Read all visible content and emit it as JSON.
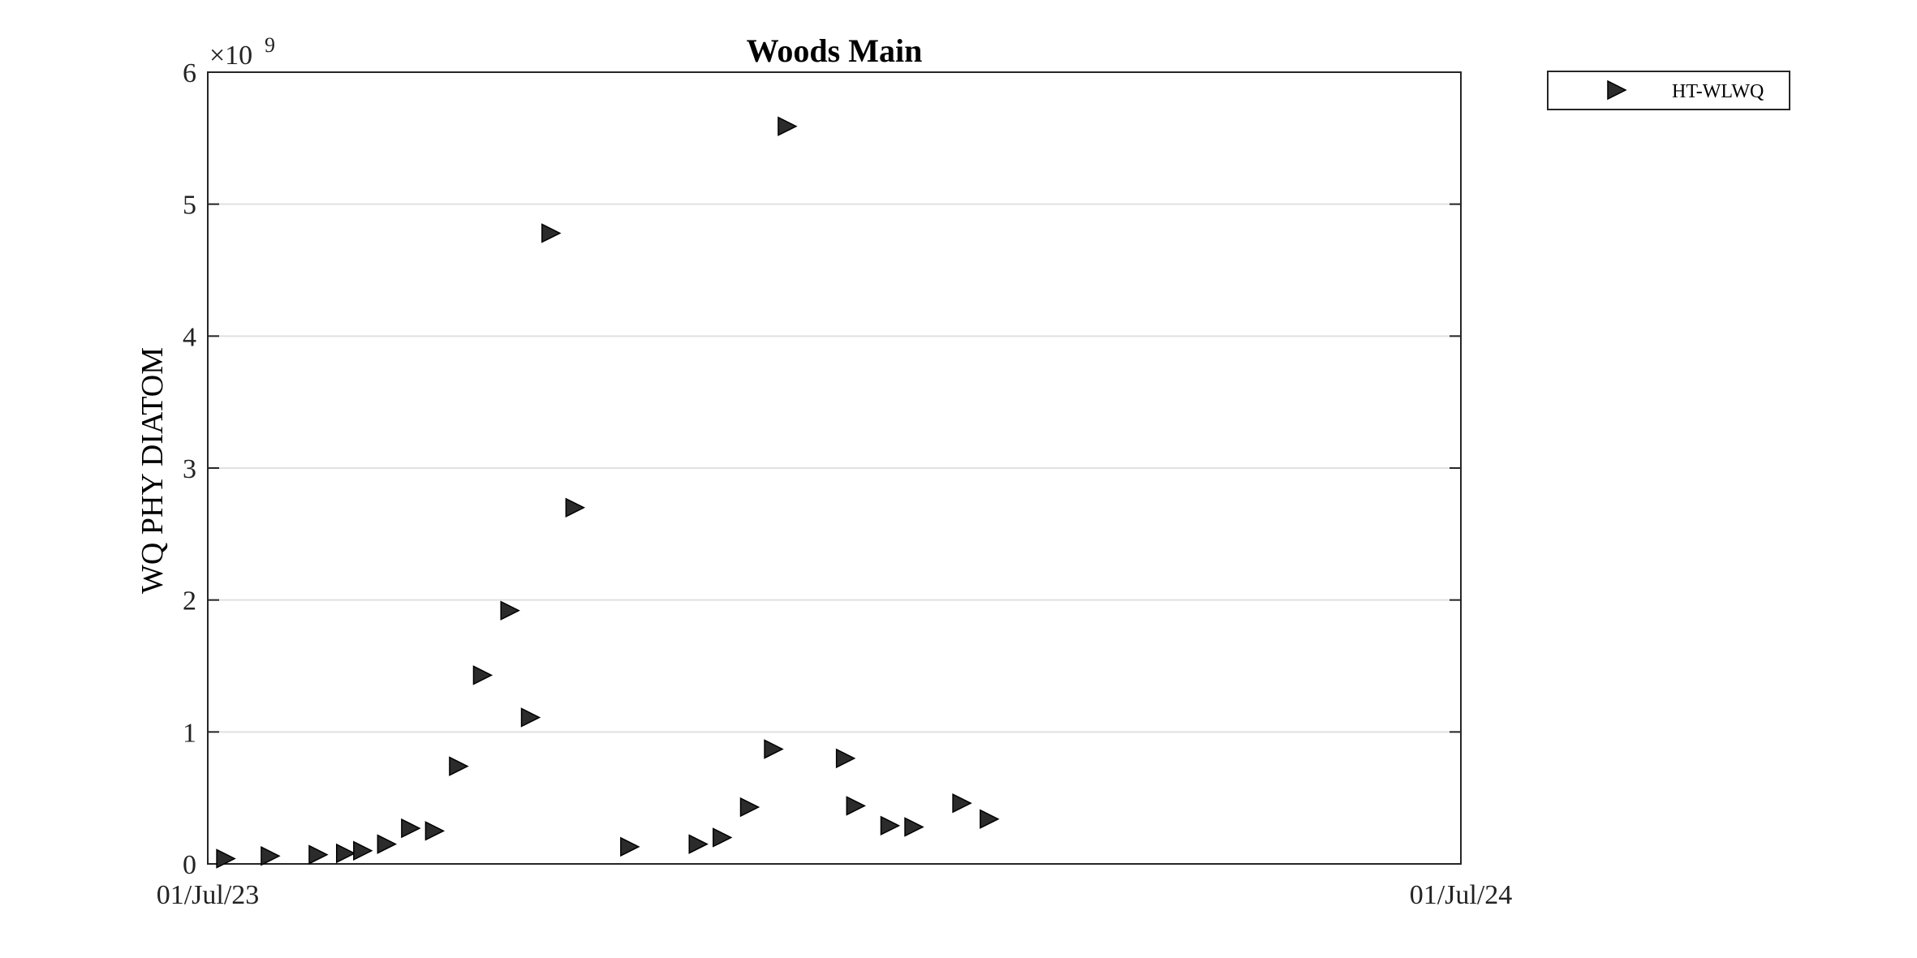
{
  "chart_data": {
    "type": "scatter",
    "title": "Woods Main",
    "ylabel": "WQ PHY DIATOM",
    "xlabel": "",
    "y_multiplier_base": "×10",
    "y_multiplier_exponent": "9",
    "xlim": [
      "2023-07-01",
      "2024-07-01"
    ],
    "ylim": [
      0,
      6
    ],
    "x_tick_labels": [
      "01/Jul/23",
      "01/Jul/24"
    ],
    "y_tick_labels": [
      "0",
      "1",
      "2",
      "3",
      "4",
      "5",
      "6"
    ],
    "grid": "horizontal",
    "legend_position": "top-right outside",
    "series": [
      {
        "name": "HT-WLWQ",
        "marker": "right-triangle",
        "color": "#2b2b2b",
        "points": [
          {
            "x": "2023-07-06",
            "y": 0.04
          },
          {
            "x": "2023-07-19",
            "y": 0.06
          },
          {
            "x": "2023-08-02",
            "y": 0.07
          },
          {
            "x": "2023-08-10",
            "y": 0.08
          },
          {
            "x": "2023-08-15",
            "y": 0.1
          },
          {
            "x": "2023-08-22",
            "y": 0.15
          },
          {
            "x": "2023-08-29",
            "y": 0.27
          },
          {
            "x": "2023-09-05",
            "y": 0.25
          },
          {
            "x": "2023-09-12",
            "y": 0.74
          },
          {
            "x": "2023-09-19",
            "y": 1.43
          },
          {
            "x": "2023-09-27",
            "y": 1.92
          },
          {
            "x": "2023-10-03",
            "y": 1.11
          },
          {
            "x": "2023-10-09",
            "y": 4.78
          },
          {
            "x": "2023-10-16",
            "y": 2.7
          },
          {
            "x": "2023-11-01",
            "y": 0.13
          },
          {
            "x": "2023-11-21",
            "y": 0.15
          },
          {
            "x": "2023-11-28",
            "y": 0.2
          },
          {
            "x": "2023-12-06",
            "y": 0.43
          },
          {
            "x": "2023-12-13",
            "y": 0.87
          },
          {
            "x": "2023-12-17",
            "y": 5.59
          },
          {
            "x": "2024-01-03",
            "y": 0.8
          },
          {
            "x": "2024-01-06",
            "y": 0.44
          },
          {
            "x": "2024-01-16",
            "y": 0.29
          },
          {
            "x": "2024-01-23",
            "y": 0.28
          },
          {
            "x": "2024-02-06",
            "y": 0.46
          },
          {
            "x": "2024-02-14",
            "y": 0.34
          }
        ]
      }
    ]
  }
}
